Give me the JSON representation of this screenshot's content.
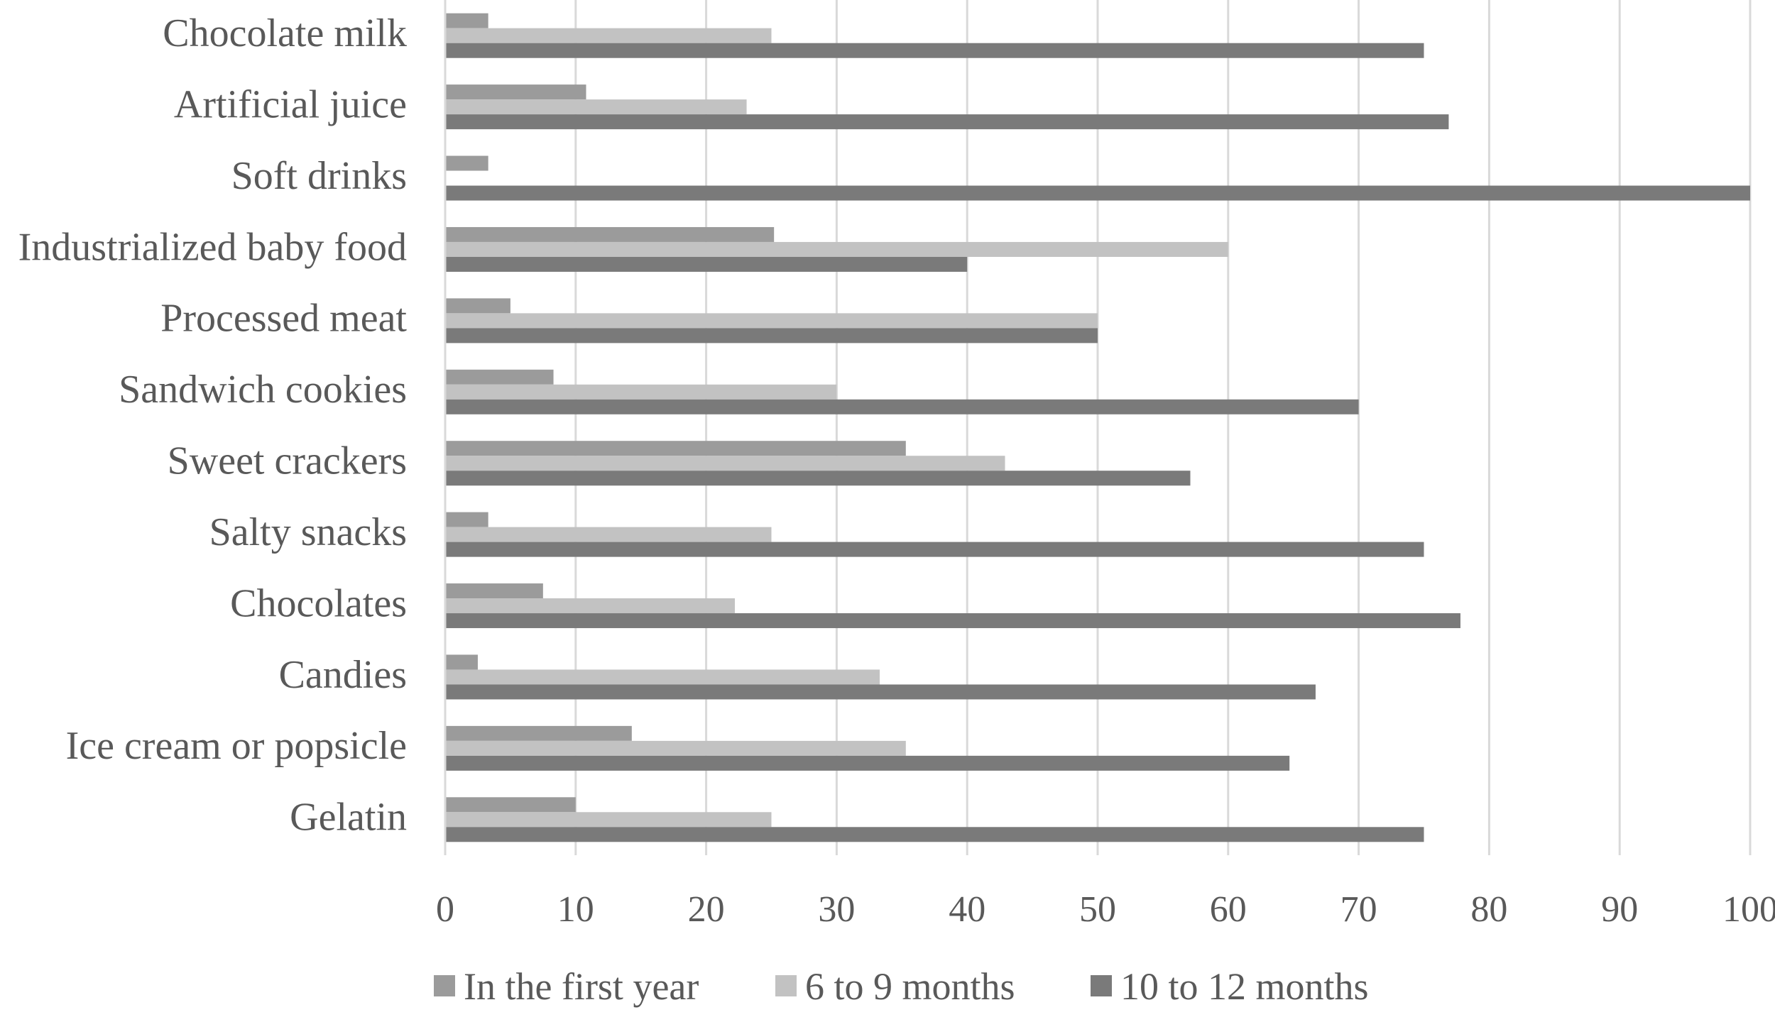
{
  "chart_data": {
    "type": "bar",
    "orientation": "horizontal",
    "categories": [
      "Chocolate milk",
      "Artificial juice",
      "Soft drinks",
      "Industrialized baby food",
      "Processed meat",
      "Sandwich cookies",
      "Sweet crackers",
      "Salty snacks",
      "Chocolates",
      "Candies",
      "Ice cream or popsicle",
      "Gelatin"
    ],
    "series": [
      {
        "name": "In the first year",
        "color": "#9b9b9b",
        "values": [
          3.3,
          10.8,
          3.3,
          25.2,
          5.0,
          8.3,
          35.3,
          3.3,
          7.5,
          2.5,
          14.3,
          10.0
        ]
      },
      {
        "name": "6 to 9 months",
        "color": "#c2c2c2",
        "values": [
          25.0,
          23.1,
          0,
          60.0,
          50.0,
          30.0,
          42.9,
          25.0,
          22.2,
          33.3,
          35.3,
          25.0
        ]
      },
      {
        "name": "10 to 12 months",
        "color": "#7a7a7a",
        "values": [
          75.0,
          76.9,
          100.0,
          40.0,
          50.0,
          70.0,
          57.1,
          75.0,
          77.8,
          66.7,
          64.7,
          75.0
        ]
      }
    ],
    "x_ticks": [
      "0",
      "10",
      "20",
      "30",
      "40",
      "50",
      "60",
      "70",
      "80",
      "90",
      "100"
    ],
    "xlim": [
      0,
      100
    ],
    "grid": true,
    "legend_position": "bottom",
    "title": "",
    "xlabel": "",
    "ylabel": ""
  }
}
